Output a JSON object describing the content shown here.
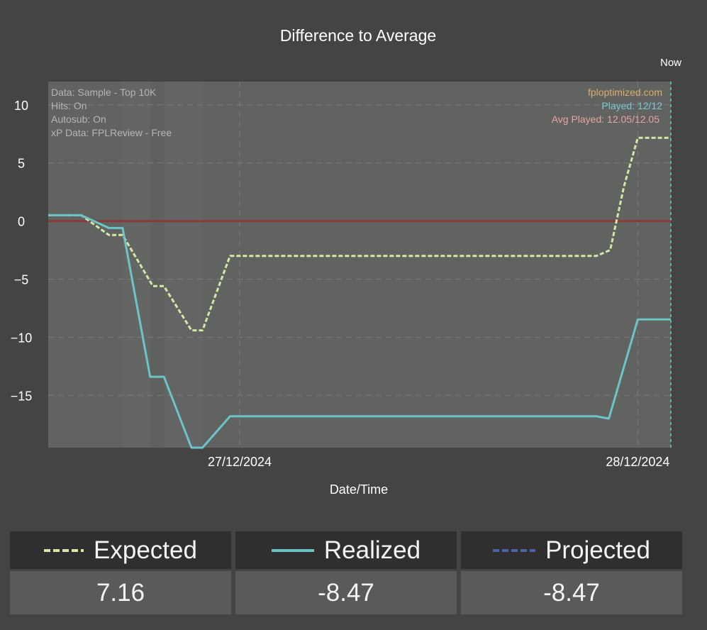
{
  "chart_data": {
    "type": "line",
    "title": "Difference to Average",
    "xlabel": "Date/Time",
    "ylabel": "",
    "ylim": [
      -19.5,
      12.0
    ],
    "yticks": [
      10,
      5,
      0,
      -5,
      -10,
      -15
    ],
    "ytick_labels": [
      "10",
      "5",
      "0",
      "−5",
      "−10",
      "−15"
    ],
    "xlim": [
      0,
      22.6
    ],
    "xticks": [
      {
        "x": 6.95,
        "label": "27/12/2024"
      },
      {
        "x": 21.4,
        "label": "28/12/2024"
      }
    ],
    "now_label": "Now",
    "now_x": 22.6,
    "grid": true,
    "series": [
      {
        "name": "Expected",
        "style": "dashed",
        "color": "#d4e8a6",
        "x": [
          0,
          1.2,
          2.2,
          2.7,
          3.8,
          4.2,
          5.2,
          5.6,
          6.6,
          13.0,
          19.9,
          20.4,
          20.9,
          21.4,
          22.6
        ],
        "y": [
          0.5,
          0.5,
          -1.2,
          -1.2,
          -5.6,
          -5.6,
          -9.4,
          -9.4,
          -3.0,
          -3.0,
          -3.0,
          -2.5,
          3.0,
          7.16,
          7.16
        ]
      },
      {
        "name": "Realized",
        "style": "solid",
        "color": "#6cc4c8",
        "x": [
          0,
          1.2,
          2.2,
          2.7,
          3.7,
          4.2,
          5.2,
          5.6,
          6.6,
          13.0,
          19.9,
          20.35,
          21.4,
          22.6
        ],
        "y": [
          0.5,
          0.5,
          -0.6,
          -0.6,
          -13.4,
          -13.4,
          -19.5,
          -19.5,
          -16.8,
          -16.8,
          -16.8,
          -17.0,
          -8.47,
          -8.47
        ]
      }
    ],
    "reference_line": {
      "y": 0,
      "color": "#8a3a3a"
    },
    "shaded_bands": [
      {
        "x0": 0,
        "x1": 2.7,
        "shade": 0.3
      },
      {
        "x0": 2.7,
        "x1": 3.7,
        "shade": 0.45
      },
      {
        "x0": 3.7,
        "x1": 4.2,
        "shade": 0.22
      },
      {
        "x0": 4.2,
        "x1": 5.6,
        "shade": 0.38
      },
      {
        "x0": 5.6,
        "x1": 22.6,
        "shade": 0.3
      }
    ],
    "annotations_left": [
      "Data: Sample - Top 10K",
      "Hits: On",
      "Autosub: On",
      "xP Data: FPLReview - Free"
    ],
    "annotations_right": [
      {
        "text": "fploptimized.com",
        "color": "#d9ad6c"
      },
      {
        "text": "Played: 12/12",
        "color": "#7cc8d4"
      },
      {
        "text": "Avg Played: 12.05/12.05",
        "color": "#e9a3a3"
      }
    ]
  },
  "legend": [
    {
      "label": "Expected",
      "value": "7.16",
      "color": "#d4e8a6",
      "style": "dashed"
    },
    {
      "label": "Realized",
      "value": "-8.47",
      "color": "#6cc4c8",
      "style": "solid"
    },
    {
      "label": "Projected",
      "value": "-8.47",
      "color": "#4c63a8",
      "style": "dashed"
    }
  ]
}
